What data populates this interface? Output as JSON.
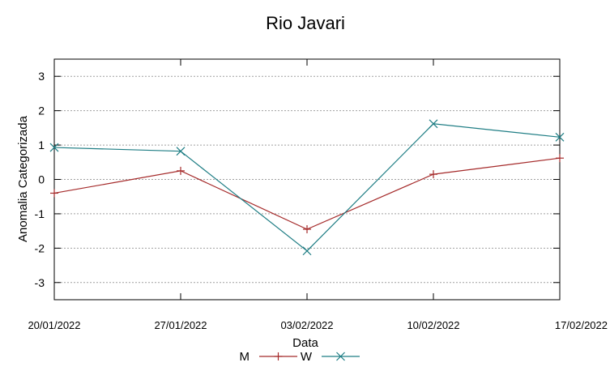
{
  "chart_data": {
    "type": "line",
    "title": "Rio Javari",
    "xlabel": "Data",
    "ylabel": "Anomalia Categorizada",
    "categories": [
      "20/01/2022",
      "27/01/2022",
      "03/02/2022",
      "10/02/2022",
      "17/02/2022"
    ],
    "ylim": [
      -3.5,
      3.5
    ],
    "yticks": [
      "3",
      "2",
      "1",
      "0",
      "-1",
      "-2",
      "-3"
    ],
    "ytick_values": [
      3,
      2,
      1,
      0,
      -1,
      -2,
      -3
    ],
    "grid": true,
    "legend_position": "bottom-center",
    "series": [
      {
        "name": "M",
        "color": "#a52a2a",
        "marker": "plus",
        "values": [
          -0.4,
          0.25,
          -1.45,
          0.15,
          0.62
        ]
      },
      {
        "name": "W",
        "color": "#1e7d84",
        "marker": "cross",
        "values": [
          0.93,
          0.82,
          -2.08,
          1.62,
          1.23
        ]
      }
    ]
  }
}
